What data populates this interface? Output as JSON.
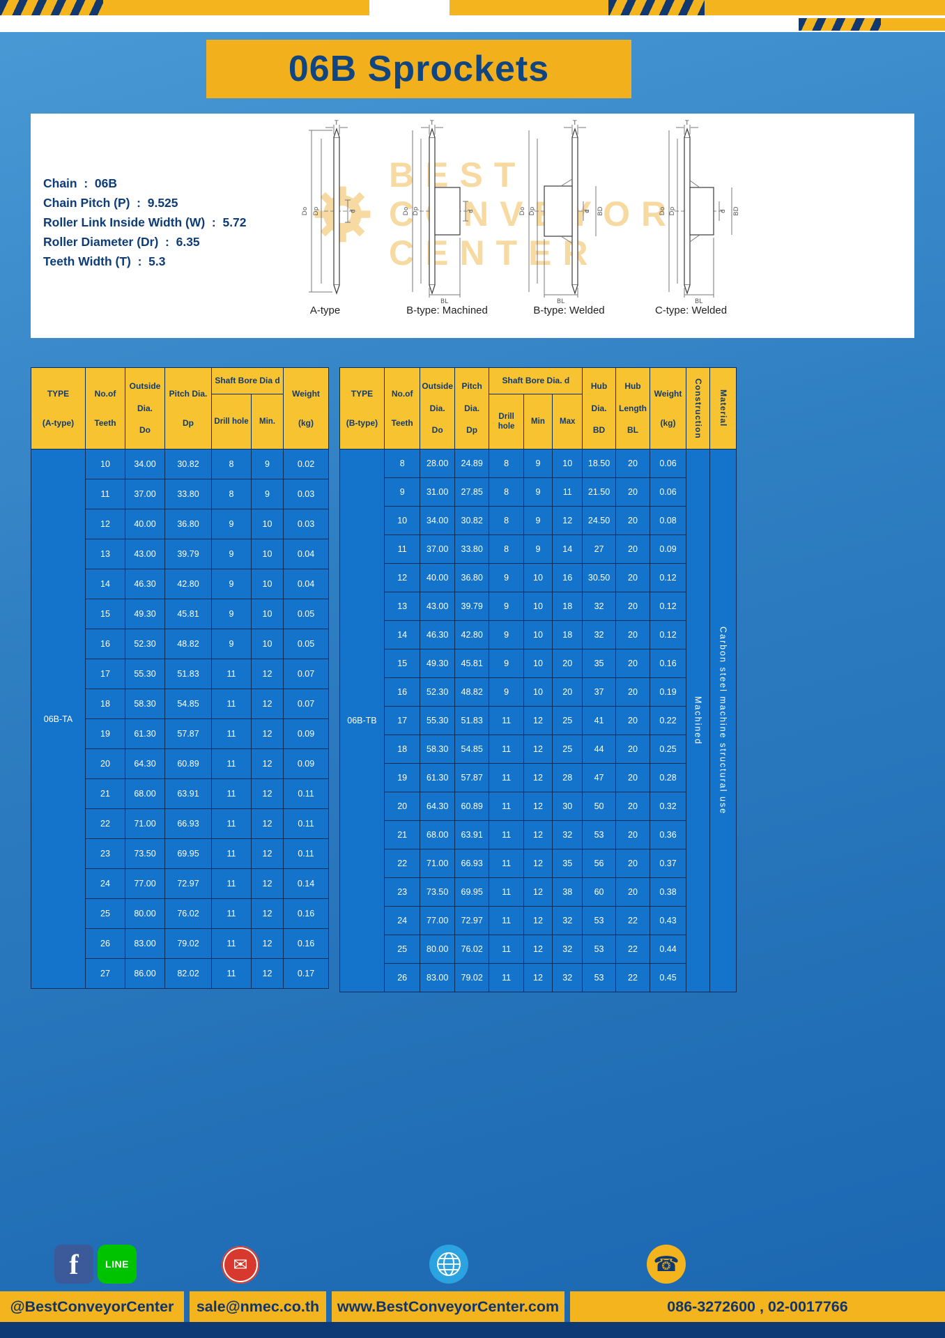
{
  "title": "06B Sprockets",
  "specs": [
    "Chain  :  06B",
    "Chain Pitch (P)  :  9.525",
    "Roller Link Inside Width (W)  :  5.72",
    "Roller Diameter (Dr)  :  6.35",
    "Teeth Width (T)  :  5.3"
  ],
  "watermark": {
    "lines": [
      "BEST",
      "CONVEYOR",
      "CENTER"
    ]
  },
  "drawings": [
    "A-type",
    "B-type: Machined",
    "B-type: Welded",
    "C-type: Welded"
  ],
  "dim_labels": {
    "t": "T",
    "dd": "Do",
    "dp": "Dp",
    "d": "d",
    "bd": "BD",
    "bl": "BL"
  },
  "table_a": {
    "type_value": "06B-TA",
    "headers": {
      "type": [
        "TYPE",
        "(A-type)"
      ],
      "teeth": [
        "No.of",
        "Teeth"
      ],
      "outside": [
        "Outside",
        "Dia.",
        "Do"
      ],
      "pitch": [
        "Pitch Dia.",
        "Dp"
      ],
      "shaft_group": "Shaft Bore Dia d",
      "drill": "Drill hole",
      "min": "Min.",
      "weight": [
        "Weight",
        "(kg)"
      ]
    },
    "rows": [
      [
        "10",
        "34.00",
        "30.82",
        "8",
        "9",
        "0.02"
      ],
      [
        "11",
        "37.00",
        "33.80",
        "8",
        "9",
        "0.03"
      ],
      [
        "12",
        "40.00",
        "36.80",
        "9",
        "10",
        "0.03"
      ],
      [
        "13",
        "43.00",
        "39.79",
        "9",
        "10",
        "0.04"
      ],
      [
        "14",
        "46.30",
        "42.80",
        "9",
        "10",
        "0.04"
      ],
      [
        "15",
        "49.30",
        "45.81",
        "9",
        "10",
        "0.05"
      ],
      [
        "16",
        "52.30",
        "48.82",
        "9",
        "10",
        "0.05"
      ],
      [
        "17",
        "55.30",
        "51.83",
        "11",
        "12",
        "0.07"
      ],
      [
        "18",
        "58.30",
        "54.85",
        "11",
        "12",
        "0.07"
      ],
      [
        "19",
        "61.30",
        "57.87",
        "11",
        "12",
        "0.09"
      ],
      [
        "20",
        "64.30",
        "60.89",
        "11",
        "12",
        "0.09"
      ],
      [
        "21",
        "68.00",
        "63.91",
        "11",
        "12",
        "0.11"
      ],
      [
        "22",
        "71.00",
        "66.93",
        "11",
        "12",
        "0.11"
      ],
      [
        "23",
        "73.50",
        "69.95",
        "11",
        "12",
        "0.11"
      ],
      [
        "24",
        "77.00",
        "72.97",
        "11",
        "12",
        "0.14"
      ],
      [
        "25",
        "80.00",
        "76.02",
        "11",
        "12",
        "0.16"
      ],
      [
        "26",
        "83.00",
        "79.02",
        "11",
        "12",
        "0.16"
      ],
      [
        "27",
        "86.00",
        "82.02",
        "11",
        "12",
        "0.17"
      ]
    ]
  },
  "table_b": {
    "type_value": "06B-TB",
    "construction_value": "Machined",
    "material_value": "Carbon  steel  machine  structural  use",
    "headers": {
      "type": [
        "TYPE",
        "(B-type)"
      ],
      "teeth": [
        "No.of",
        "Teeth"
      ],
      "outside": [
        "Outside",
        "Dia.",
        "Do"
      ],
      "pitch": [
        "Pitch",
        "Dia.",
        "Dp"
      ],
      "shaft_group": "Shaft Bore Dia.  d",
      "drill": "Drill hole",
      "min": "Min",
      "max": "Max",
      "hub_dia": [
        "Hub",
        "Dia.",
        "BD"
      ],
      "hub_len": [
        "Hub",
        "Length",
        "BL"
      ],
      "weight": [
        "Weight",
        "(kg)"
      ],
      "construction": "Construction",
      "material": "Material"
    },
    "rows": [
      [
        "8",
        "28.00",
        "24.89",
        "8",
        "9",
        "10",
        "18.50",
        "20",
        "0.06"
      ],
      [
        "9",
        "31.00",
        "27.85",
        "8",
        "9",
        "11",
        "21.50",
        "20",
        "0.06"
      ],
      [
        "10",
        "34.00",
        "30.82",
        "8",
        "9",
        "12",
        "24.50",
        "20",
        "0.08"
      ],
      [
        "11",
        "37.00",
        "33.80",
        "8",
        "9",
        "14",
        "27",
        "20",
        "0.09"
      ],
      [
        "12",
        "40.00",
        "36.80",
        "9",
        "10",
        "16",
        "30.50",
        "20",
        "0.12"
      ],
      [
        "13",
        "43.00",
        "39.79",
        "9",
        "10",
        "18",
        "32",
        "20",
        "0.12"
      ],
      [
        "14",
        "46.30",
        "42.80",
        "9",
        "10",
        "18",
        "32",
        "20",
        "0.12"
      ],
      [
        "15",
        "49.30",
        "45.81",
        "9",
        "10",
        "20",
        "35",
        "20",
        "0.16"
      ],
      [
        "16",
        "52.30",
        "48.82",
        "9",
        "10",
        "20",
        "37",
        "20",
        "0.19"
      ],
      [
        "17",
        "55.30",
        "51.83",
        "11",
        "12",
        "25",
        "41",
        "20",
        "0.22"
      ],
      [
        "18",
        "58.30",
        "54.85",
        "11",
        "12",
        "25",
        "44",
        "20",
        "0.25"
      ],
      [
        "19",
        "61.30",
        "57.87",
        "11",
        "12",
        "28",
        "47",
        "20",
        "0.28"
      ],
      [
        "20",
        "64.30",
        "60.89",
        "11",
        "12",
        "30",
        "50",
        "20",
        "0.32"
      ],
      [
        "21",
        "68.00",
        "63.91",
        "11",
        "12",
        "32",
        "53",
        "20",
        "0.36"
      ],
      [
        "22",
        "71.00",
        "66.93",
        "11",
        "12",
        "35",
        "56",
        "20",
        "0.37"
      ],
      [
        "23",
        "73.50",
        "69.95",
        "11",
        "12",
        "38",
        "60",
        "20",
        "0.38"
      ],
      [
        "24",
        "77.00",
        "72.97",
        "11",
        "12",
        "32",
        "53",
        "22",
        "0.43"
      ],
      [
        "25",
        "80.00",
        "76.02",
        "11",
        "12",
        "32",
        "53",
        "22",
        "0.44"
      ],
      [
        "26",
        "83.00",
        "79.02",
        "11",
        "12",
        "32",
        "53",
        "22",
        "0.45"
      ]
    ]
  },
  "footer": {
    "segments": [
      "@BestConveyorCenter",
      "sale@nmec.co.th",
      "www.BestConveyorCenter.com",
      "086-3272600 , 02-0017766"
    ],
    "icons": {
      "facebook_glyph": "f",
      "line_label": "LINE",
      "email_glyph": "✉",
      "phone_glyph": "☎"
    }
  }
}
